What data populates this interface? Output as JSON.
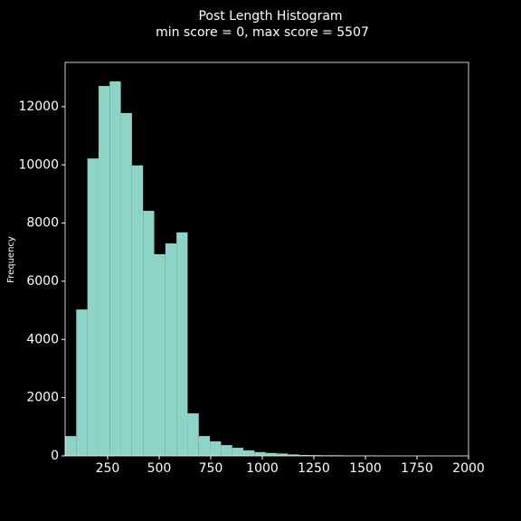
{
  "chart_data": {
    "type": "histogram",
    "title": "Post Length Histogram",
    "subtitle": "min score = 0, max score = 5507",
    "y_label": "Frequency",
    "bins": [
      44,
      98,
      152,
      206,
      260,
      314,
      368,
      422,
      476,
      530,
      584,
      638,
      692,
      746,
      800,
      854,
      908,
      962,
      1016,
      1070,
      1124,
      1178,
      1232,
      1286,
      1340,
      1394,
      1448,
      1502,
      1556
    ],
    "values": [
      680,
      5030,
      10220,
      12710,
      12870,
      11780,
      9980,
      8420,
      6930,
      7300,
      7680,
      1460,
      680,
      500,
      370,
      280,
      190,
      130,
      100,
      80,
      50,
      30,
      25,
      20,
      20,
      15,
      15,
      10
    ],
    "color": "#8dd3c7",
    "xlim": [
      44,
      2000
    ],
    "xticks": [
      250,
      500,
      750,
      1000,
      1250,
      1500,
      1750,
      2000
    ],
    "ylim": [
      0,
      13520
    ],
    "yticks": [
      0,
      2000,
      4000,
      6000,
      8000,
      10000,
      12000
    ]
  }
}
